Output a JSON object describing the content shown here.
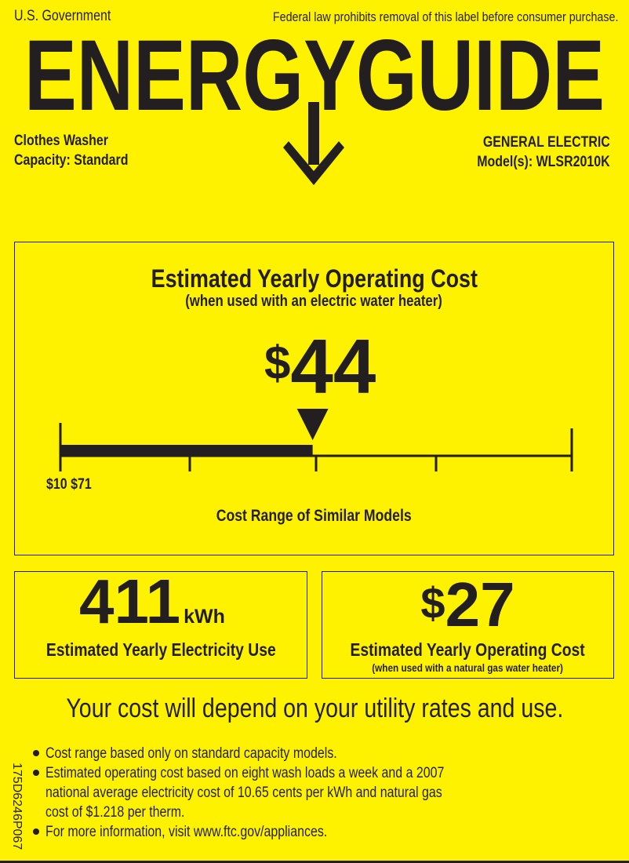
{
  "header": {
    "government": "U.S. Government",
    "notice": "Federal law prohibits removal of this label before consumer purchase.",
    "logo_text": "ENERGYGUIDE",
    "appliance_type": "Clothes Washer",
    "capacity": "Capacity: Standard",
    "manufacturer": "GENERAL ELECTRIC",
    "models": "Model(s): WLSR2010K"
  },
  "main_cost": {
    "title": "Estimated Yearly Operating Cost",
    "subtitle": "(when used with an electric water heater)",
    "currency": "$",
    "value": "44",
    "scale_min": 10,
    "scale_max": 71,
    "scale_value": 44,
    "range_labels": "$10 $71",
    "range_caption": "Cost Range of Similar Models"
  },
  "electricity": {
    "value": "411",
    "unit": "kWh",
    "label": "Estimated Yearly Electricity Use"
  },
  "gas_cost": {
    "currency": "$",
    "value": "27",
    "label": "Estimated Yearly Operating Cost",
    "sublabel": "(when used with a natural gas water heater)"
  },
  "tagline": "Your cost will depend on your utility rates and use.",
  "notes": [
    "Cost range based only on standard capacity models.",
    "Estimated operating cost based on eight wash loads a week and a 2007",
    "national average electricity cost of 10.65 cents per kWh and natural gas",
    "cost of $1.218 per therm.",
    "For more information, visit www.ftc.gov/appliances."
  ],
  "label_code": "175D6246P067",
  "colors": {
    "background": "#fff200",
    "ink": "#231f20"
  }
}
